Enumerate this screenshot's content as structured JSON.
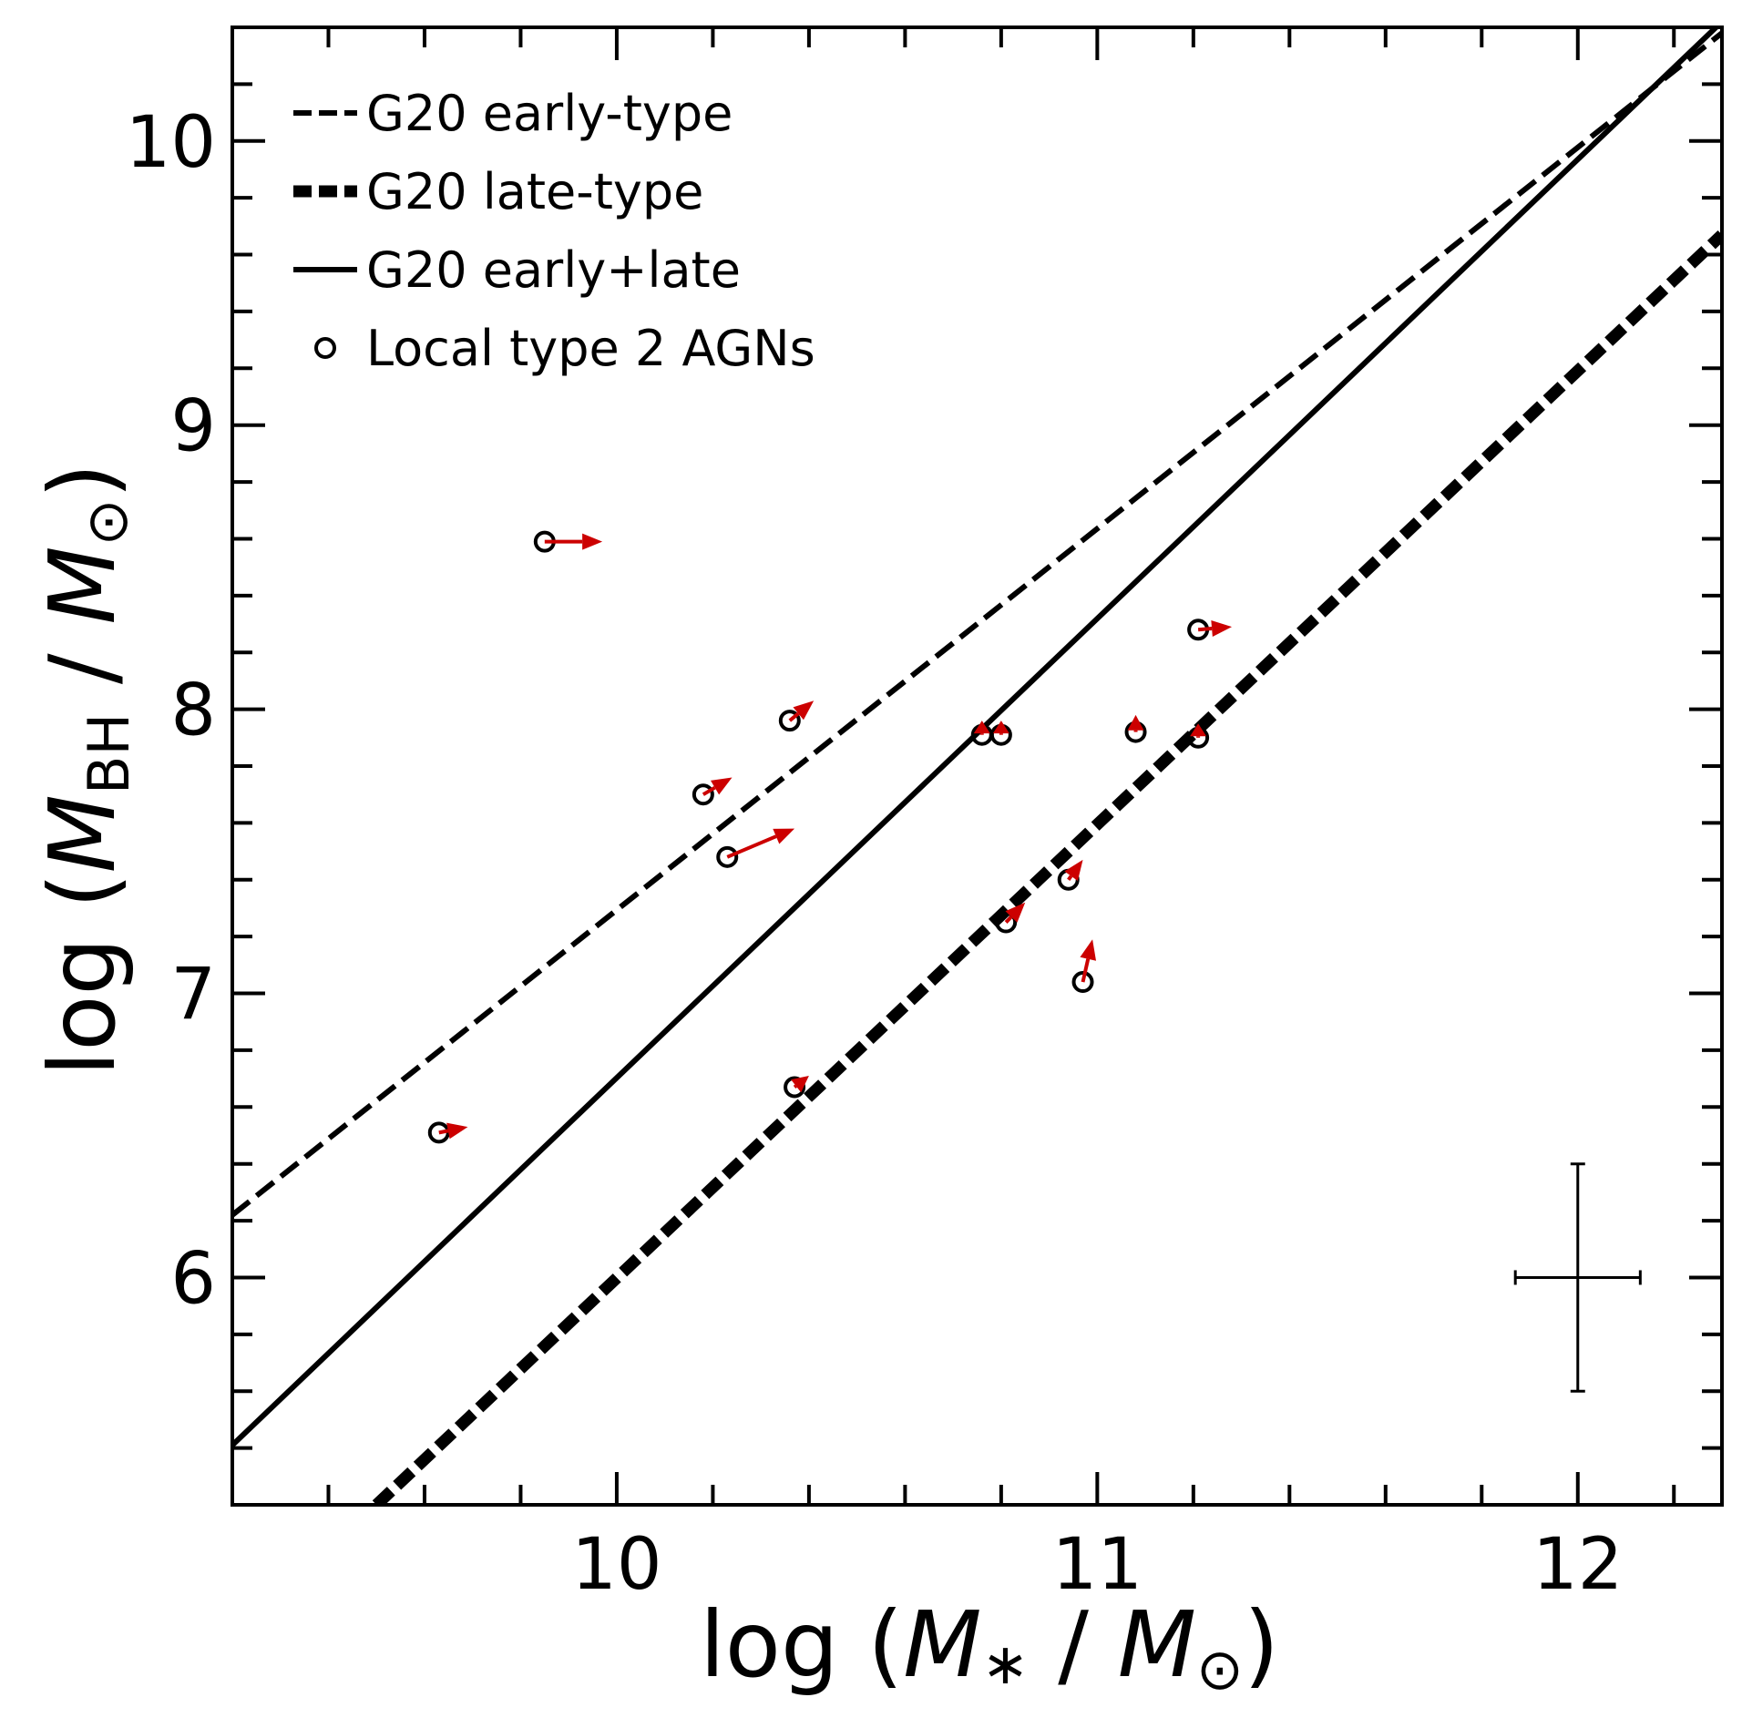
{
  "chart_data": {
    "type": "scatter",
    "x_title": {
      "prefix": "log (",
      "var": "M",
      "var_sub": "∗",
      "sep": " / ",
      "unit": "M",
      "unit_sub": "⊙",
      "suffix": ")"
    },
    "y_title": {
      "prefix": "log (",
      "var": "M",
      "var_sub": "BH",
      "sep": " / ",
      "unit": "M",
      "unit_sub": "⊙",
      "suffix": ")"
    },
    "xlim": [
      9.2,
      12.3
    ],
    "ylim": [
      5.2,
      10.4
    ],
    "x_major_ticks": [
      10,
      11,
      12
    ],
    "x_tick_labels": [
      "10",
      "11",
      "12"
    ],
    "x_minor_step": 0.2,
    "y_major_ticks": [
      6,
      7,
      8,
      9,
      10
    ],
    "y_tick_labels": [
      "6",
      "7",
      "8",
      "9",
      "10"
    ],
    "y_minor_step": 0.2,
    "lines": [
      {
        "name": "G20 early-type",
        "style": "dashed",
        "x": [
          9.2,
          12.3
        ],
        "y": [
          6.22,
          10.38
        ]
      },
      {
        "name": "G20 late-type",
        "style": "thick-dashed",
        "x": [
          9.5,
          12.3
        ],
        "y": [
          5.2,
          9.67
        ]
      },
      {
        "name": "G20 early+late",
        "style": "solid",
        "x": [
          9.2,
          12.3
        ],
        "y": [
          5.41,
          10.42
        ]
      }
    ],
    "points": {
      "name": "Local type 2 AGNs",
      "x": [
        9.85,
        9.63,
        10.18,
        10.36,
        10.23,
        10.76,
        10.8,
        11.08,
        11.21,
        11.21,
        10.94,
        10.81,
        10.97,
        10.37
      ],
      "y": [
        8.59,
        6.51,
        7.7,
        7.96,
        7.48,
        7.91,
        7.91,
        7.92,
        8.28,
        7.9,
        7.4,
        7.25,
        7.04,
        6.67
      ],
      "arrow_dx": [
        0.12,
        0.06,
        0.06,
        0.05,
        0.14,
        0.0,
        0.0,
        0.0,
        0.07,
        0.0,
        0.03,
        0.04,
        0.02,
        0.03
      ],
      "arrow_dy": [
        0.0,
        0.02,
        0.06,
        0.07,
        0.1,
        0.05,
        0.05,
        0.06,
        0.01,
        0.05,
        0.07,
        0.07,
        0.15,
        0.04
      ]
    },
    "error_bar": {
      "x": 12.0,
      "y": 6.0,
      "xerr": 0.13,
      "yerr": 0.4
    },
    "arrow_color": "#cc0000",
    "legend": {
      "placement": "top-left",
      "entries": [
        {
          "label": "G20 early-type",
          "style": "dashed"
        },
        {
          "label": "G20 late-type",
          "style": "thick-dashed"
        },
        {
          "label": "G20 early+late",
          "style": "solid"
        },
        {
          "label": "Local type 2 AGNs",
          "style": "circle"
        }
      ]
    }
  }
}
